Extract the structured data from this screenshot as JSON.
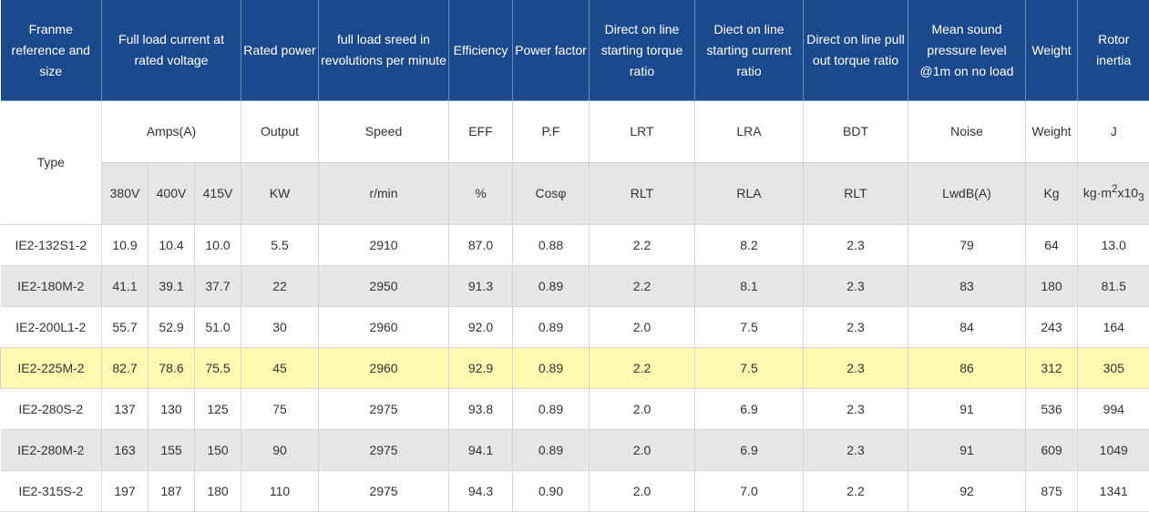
{
  "headers": {
    "frame": "Franme reference and size",
    "current": "Full load current at rated voltage",
    "power": "Rated power",
    "speed": "full load sreed in revolutions per minute",
    "eff": "Efficiency",
    "pf": "Power factor",
    "lrt": "Direct on line starting torque ratio",
    "lra": "Diect on line starting current ratio",
    "bdt": "Direct on line pull out torque ratio",
    "noise": "Mean sound pressure level @1m on no load",
    "weight": "Weight",
    "inertia": "Rotor inertia"
  },
  "subheaders": {
    "type": "Type",
    "amps": "Amps(A)",
    "output": "Output",
    "speed": "Speed",
    "eff": "EFF",
    "pf": "P.F",
    "lrt": "LRT",
    "lra": "LRA",
    "bdt": "BDT",
    "noise": "Noise",
    "weight": "Weight",
    "inertia": "J"
  },
  "units": {
    "v380": "380V",
    "v400": "400V",
    "v415": "415V",
    "kw": "KW",
    "rpm": "r/min",
    "pct": "%",
    "cos": "Cosφ",
    "rlt": "RLT",
    "rla": "RLA",
    "rlt2": "RLT",
    "db": "LwdB(A)",
    "kg": "Kg",
    "j_base": "kg·m",
    "j_sup": "2",
    "j_mid": "x10",
    "j_exp": "3"
  },
  "highlight_row_index": 3,
  "highlight_color": "#fffab0",
  "header_color": "#1b4a8c",
  "rows": [
    [
      "IE2-132S1-2",
      "10.9",
      "10.4",
      "10.0",
      "5.5",
      "2910",
      "87.0",
      "0.88",
      "2.2",
      "8.2",
      "2.3",
      "79",
      "64",
      "13.0"
    ],
    [
      "IE2-180M-2",
      "41.1",
      "39.1",
      "37.7",
      "22",
      "2950",
      "91.3",
      "0.89",
      "2.2",
      "8.1",
      "2.3",
      "83",
      "180",
      "81.5"
    ],
    [
      "IE2-200L1-2",
      "55.7",
      "52.9",
      "51.0",
      "30",
      "2960",
      "92.0",
      "0.89",
      "2.0",
      "7.5",
      "2.3",
      "84",
      "243",
      "164"
    ],
    [
      "IE2-225M-2",
      "82.7",
      "78.6",
      "75.5",
      "45",
      "2960",
      "92.9",
      "0.89",
      "2.2",
      "7.5",
      "2.3",
      "86",
      "312",
      "305"
    ],
    [
      "IE2-280S-2",
      "137",
      "130",
      "125",
      "75",
      "2975",
      "93.8",
      "0.89",
      "2.0",
      "6.9",
      "2.3",
      "91",
      "536",
      "994"
    ],
    [
      "IE2-280M-2",
      "163",
      "155",
      "150",
      "90",
      "2975",
      "94.1",
      "0.89",
      "2.0",
      "6.9",
      "2.3",
      "91",
      "609",
      "1049"
    ],
    [
      "IE2-315S-2",
      "197",
      "187",
      "180",
      "110",
      "2975",
      "94.3",
      "0.90",
      "2.0",
      "7.0",
      "2.2",
      "92",
      "875",
      "1341"
    ]
  ]
}
